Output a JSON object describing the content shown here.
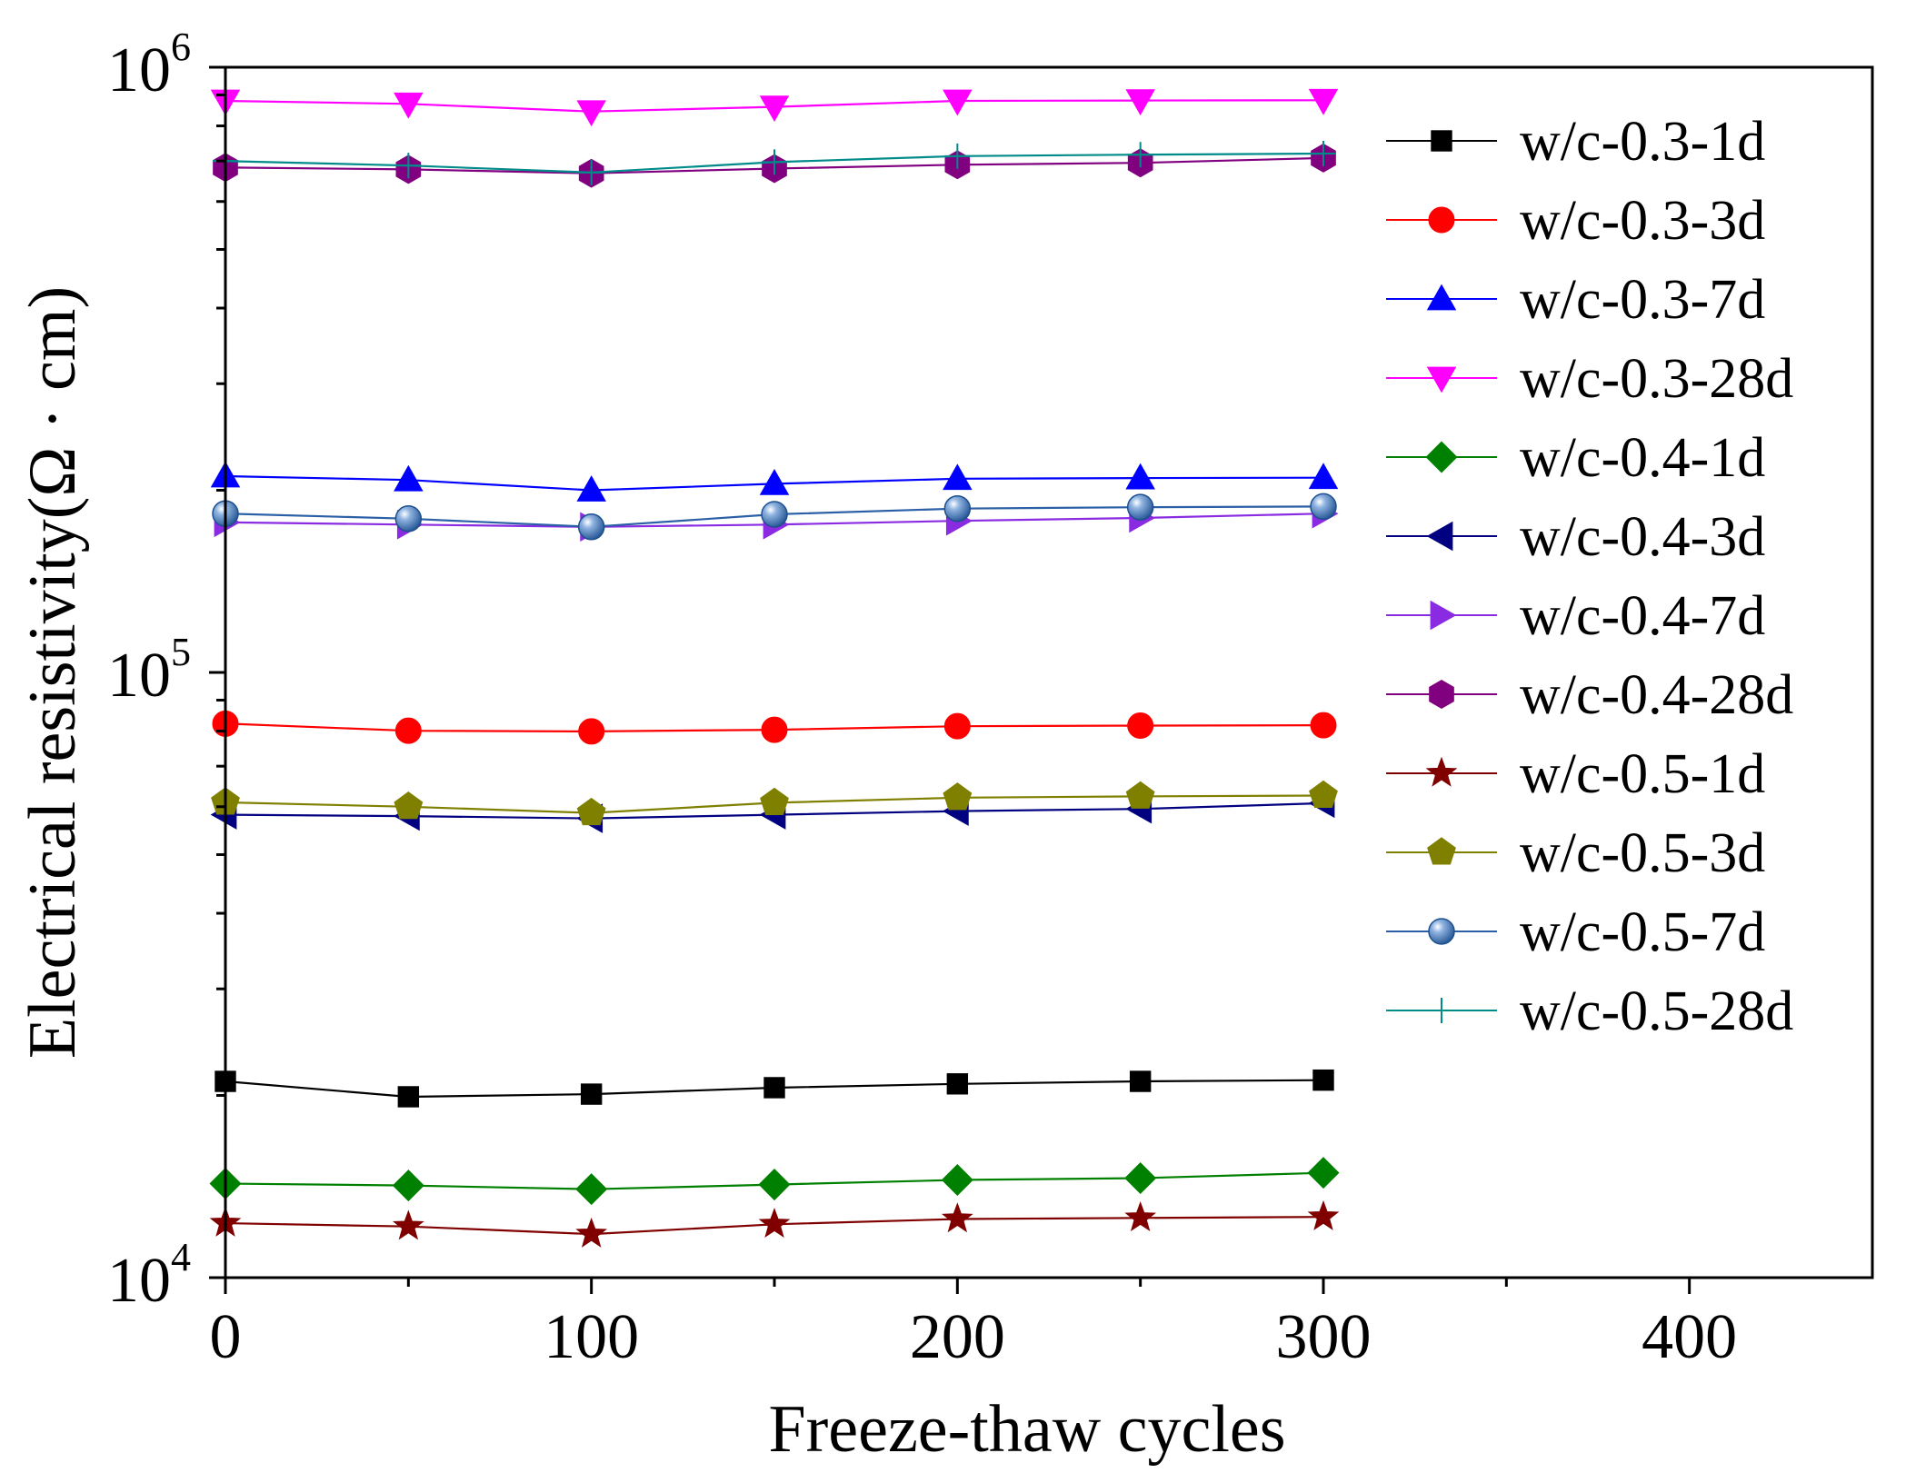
{
  "chart_data": {
    "type": "line",
    "title": "",
    "xlabel": "Freeze-thaw cycles",
    "ylabel": "Electrical resistivity(Ω · cm)",
    "xlim": [
      0,
      450
    ],
    "ylim": [
      10000,
      1000000
    ],
    "yscale": "log",
    "x_ticks": [
      0,
      100,
      200,
      300,
      400
    ],
    "x_tick_labels": [
      "0",
      "100",
      "200",
      "300",
      "400"
    ],
    "y_tick_labels": [
      {
        "base": "10",
        "exp": "4",
        "value": 10000
      },
      {
        "base": "10",
        "exp": "5",
        "value": 100000
      },
      {
        "base": "10",
        "exp": "6",
        "value": 1000000
      }
    ],
    "legend_position": "top-right",
    "x": [
      0,
      50,
      100,
      150,
      200,
      250,
      300
    ],
    "series": [
      {
        "name": "w/c-0.3-1d",
        "color": "#000000",
        "marker": "square",
        "values": [
          21100,
          19900,
          20100,
          20600,
          20900,
          21100,
          21200
        ]
      },
      {
        "name": "w/c-0.3-3d",
        "color": "#ff0000",
        "marker": "circle",
        "values": [
          82300,
          80100,
          79900,
          80400,
          81500,
          81700,
          81800
        ]
      },
      {
        "name": "w/c-0.3-7d",
        "color": "#0000ff",
        "marker": "triangle-up",
        "values": [
          211000,
          208000,
          200000,
          205000,
          209000,
          209500,
          209800
        ]
      },
      {
        "name": "w/c-0.3-28d",
        "color": "#ff00ff",
        "marker": "triangle-down",
        "values": [
          880000,
          870000,
          845000,
          860000,
          880000,
          881000,
          882000
        ]
      },
      {
        "name": "w/c-0.4-1d",
        "color": "#008000",
        "marker": "diamond",
        "values": [
          14300,
          14200,
          14000,
          14250,
          14500,
          14600,
          14900
        ]
      },
      {
        "name": "w/c-0.4-3d",
        "color": "#000080",
        "marker": "triangle-left",
        "values": [
          58200,
          57900,
          57400,
          58200,
          59000,
          59500,
          60800
        ]
      },
      {
        "name": "w/c-0.4-7d",
        "color": "#8a2be2",
        "marker": "triangle-right",
        "values": [
          177000,
          175500,
          174000,
          175500,
          178000,
          180000,
          183000
        ]
      },
      {
        "name": "w/c-0.4-28d",
        "color": "#800080",
        "marker": "hexagon",
        "values": [
          683000,
          678000,
          668000,
          680000,
          690000,
          695000,
          708000
        ]
      },
      {
        "name": "w/c-0.5-1d",
        "color": "#800000",
        "marker": "star",
        "values": [
          12300,
          12150,
          11800,
          12250,
          12500,
          12550,
          12600
        ]
      },
      {
        "name": "w/c-0.5-3d",
        "color": "#808000",
        "marker": "pentagon",
        "values": [
          61000,
          60000,
          58600,
          60900,
          62100,
          62400,
          62600
        ]
      },
      {
        "name": "w/c-0.5-7d",
        "color": "#2b5fa6",
        "marker": "sphere",
        "values": [
          183000,
          179500,
          174000,
          182500,
          186500,
          187500,
          188000
        ]
      },
      {
        "name": "w/c-0.5-28d",
        "color": "#008b8b",
        "marker": "plus",
        "values": [
          700000,
          688000,
          670000,
          697000,
          713000,
          717000,
          720000
        ]
      }
    ]
  }
}
